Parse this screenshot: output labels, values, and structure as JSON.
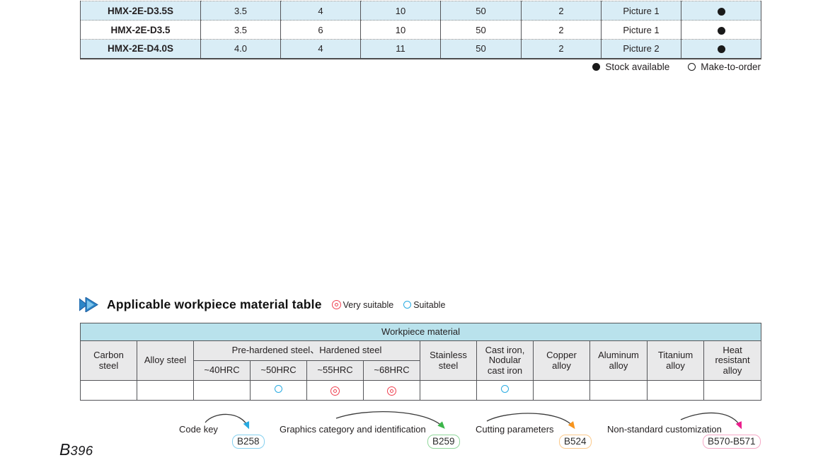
{
  "spec_table": {
    "rows": [
      {
        "model": "HMX-2E-D3.5S",
        "values": [
          "3.5",
          "4",
          "10",
          "50",
          "2",
          "Picture 1"
        ],
        "stock": "available"
      },
      {
        "model": "HMX-2E-D3.5",
        "values": [
          "3.5",
          "6",
          "10",
          "50",
          "2",
          "Picture 1"
        ],
        "stock": "available"
      },
      {
        "model": "HMX-2E-D4.0S",
        "values": [
          "4.0",
          "4",
          "11",
          "50",
          "2",
          "Picture 2"
        ],
        "stock": "available"
      }
    ],
    "legend": {
      "stock": "Stock available",
      "make_to_order": "Make-to-order"
    }
  },
  "section": {
    "title": "Applicable workpiece material table",
    "legend": {
      "very_suitable": "Very suitable",
      "suitable": "Suitable"
    }
  },
  "material_table": {
    "title": "Workpiece material",
    "headers": {
      "carbon": "Carbon\nsteel",
      "alloy": "Alloy steel",
      "prehardened": "Pre-hardened steel、Hardened steel",
      "hrc": [
        "~40HRC",
        "~50HRC",
        "~55HRC",
        "~68HRC"
      ],
      "stainless": "Stainless\nsteel",
      "cast_iron": "Cast iron,\nNodular\ncast iron",
      "copper": "Copper\nalloy",
      "aluminum": "Aluminum\nalloy",
      "titanium": "Titanium\nalloy",
      "heat": "Heat\nresistant\nalloy"
    },
    "columns": [
      "Carbon steel",
      "Alloy steel",
      "~40HRC",
      "~50HRC",
      "~55HRC",
      "~68HRC",
      "Stainless steel",
      "Cast iron, Nodular cast iron",
      "Copper alloy",
      "Aluminum alloy",
      "Titanium alloy",
      "Heat resistant alloy"
    ],
    "ratings": [
      "",
      "",
      "",
      "suitable",
      "very_suitable",
      "very_suitable",
      "",
      "suitable",
      "",
      "",
      "",
      ""
    ]
  },
  "references": [
    {
      "label": "Code key",
      "page": "B258",
      "arrow_color": "#29abe2",
      "box_border_color": "#85d0ef"
    },
    {
      "label": "Graphics category and identification",
      "page": "B259",
      "arrow_color": "#3cb54a",
      "box_border_color": "#90d79b"
    },
    {
      "label": "Cutting parameters",
      "page": "B524",
      "arrow_color": "#f7941d",
      "box_border_color": "#fbc98a"
    },
    {
      "label": "Non-standard customization",
      "page": "B570-B571",
      "arrow_color": "#ec1e8c",
      "box_border_color": "#f5a8c6"
    }
  ],
  "colors": {
    "row_blue": "#d9edf6",
    "table_title_blue": "#b9e2ec",
    "header_gray": "#e9e9ea",
    "very_suitable_red": "#ef4050",
    "suitable_blue": "#29abe2"
  },
  "page_number": {
    "prefix": "B",
    "number": "396"
  }
}
